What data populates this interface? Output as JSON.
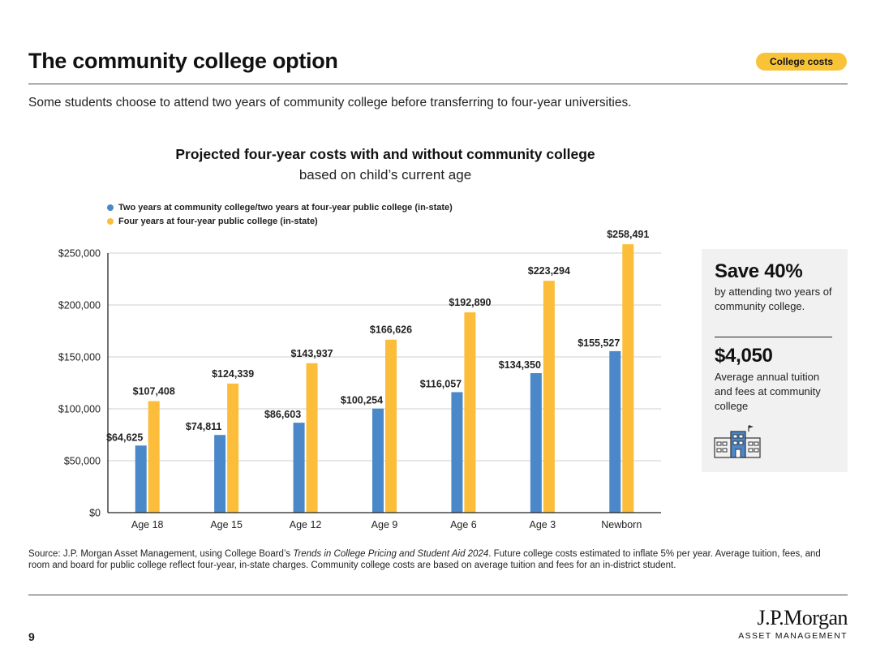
{
  "header": {
    "title": "The community college option",
    "badge": "College costs"
  },
  "subtitle": "Some students choose to attend two years of community college before transferring to four-year universities.",
  "callout": {
    "save_heading": "Save 40%",
    "save_text": "by attending two years of community college.",
    "amount": "$4,050",
    "amount_text": "Average annual tuition and fees at community college",
    "icon": "school-building-icon"
  },
  "source": {
    "prefix": "Source: J.P. Morgan Asset Management, using College Board’s ",
    "italic": "Trends in College Pricing and Student Aid 2024",
    "suffix": ". Future college costs estimated to inflate 5% per year. Average tuition, fees, and room and board for public college reflect four-year, in-state charges. Community college costs are based on average tuition and fees for an in-district student."
  },
  "footer": {
    "page_number": "9",
    "logo_name": "J.P.Morgan",
    "logo_sub": "ASSET MANAGEMENT"
  },
  "colors": {
    "blue": "#4a88c9",
    "yellow": "#fbbd3a",
    "badge": "#f9c338"
  },
  "chart_data": {
    "type": "bar",
    "title": "Projected four-year costs with and without community college",
    "subtitle": "based on child’s current age",
    "categories": [
      "Age 18",
      "Age 15",
      "Age 12",
      "Age 9",
      "Age 6",
      "Age 3",
      "Newborn"
    ],
    "series": [
      {
        "name": "Two years at community college/two years at four-year public college (in-state)",
        "values": [
          64625,
          74811,
          86603,
          100254,
          116057,
          134350,
          155527
        ],
        "labels": [
          "$64,625",
          "$74,811",
          "$86,603",
          "$100,254",
          "$116,057",
          "$134,350",
          "$155,527"
        ],
        "color": "#4a88c9"
      },
      {
        "name": "Four years at four-year public college (in-state)",
        "values": [
          107408,
          124339,
          143937,
          166626,
          192890,
          223294,
          258491
        ],
        "labels": [
          "$107,408",
          "$124,339",
          "$143,937",
          "$166,626",
          "$192,890",
          "$223,294",
          "$258,491"
        ],
        "color": "#fbbd3a"
      }
    ],
    "yticks": [
      0,
      50000,
      100000,
      150000,
      200000,
      250000
    ],
    "ytick_labels": [
      "$0",
      "$50,000",
      "$100,000",
      "$150,000",
      "$200,000",
      "$250,000"
    ],
    "ylim": [
      0,
      250000
    ],
    "grid": true,
    "legend_position": "top-left"
  }
}
